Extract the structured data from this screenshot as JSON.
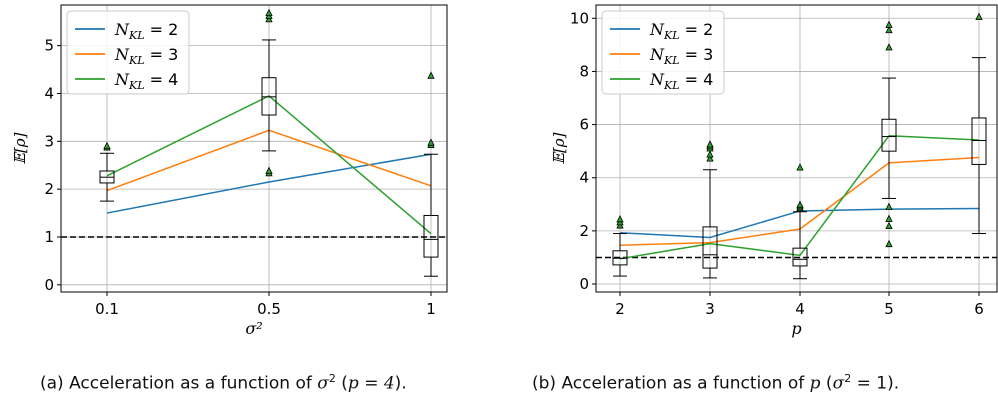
{
  "chart_data": [
    {
      "type": "line",
      "xlabel": "σ²",
      "ylabel": "𝔼[ρ]",
      "categories": [
        "0.1",
        "0.5",
        "1"
      ],
      "ylim": [
        -0.15,
        5.85
      ],
      "yticks": [
        0,
        1,
        2,
        3,
        4,
        5
      ],
      "grid": true,
      "legend_position": "top-left",
      "reference_line": {
        "y": 1,
        "style": "dashed",
        "color": "#000000"
      },
      "series": [
        {
          "name": "N_KL = 2",
          "label_main": "N",
          "label_sub": "KL",
          "label_rest": " = 2",
          "color": "#1f77b4",
          "values": [
            1.5,
            2.15,
            2.73
          ]
        },
        {
          "name": "N_KL = 3",
          "label_main": "N",
          "label_sub": "KL",
          "label_rest": " = 3",
          "color": "#ff7f0e",
          "values": [
            1.97,
            3.23,
            2.07
          ]
        },
        {
          "name": "N_KL = 4",
          "label_main": "N",
          "label_sub": "KL",
          "label_rest": " = 4",
          "color": "#2ca02c",
          "values": [
            2.28,
            3.95,
            1.07
          ]
        }
      ],
      "boxplots": [
        {
          "x": "0.1",
          "whislo": 1.75,
          "q1": 2.13,
          "med": 2.25,
          "q3": 2.38,
          "whishi": 2.75,
          "fliers": [
            2.87,
            2.9
          ]
        },
        {
          "x": "0.5",
          "whislo": 2.8,
          "q1": 3.55,
          "med": 3.93,
          "q3": 4.33,
          "whishi": 5.12,
          "fliers": [
            5.55,
            5.62,
            5.68,
            2.33,
            2.38
          ]
        },
        {
          "x": "1",
          "whislo": 0.18,
          "q1": 0.58,
          "med": 0.95,
          "q3": 1.45,
          "whishi": 2.73,
          "fliers": [
            2.92,
            2.97,
            4.37
          ]
        }
      ]
    },
    {
      "type": "line",
      "xlabel": "p",
      "ylabel": "𝔼[ρ]",
      "categories": [
        "2",
        "3",
        "4",
        "5",
        "6"
      ],
      "ylim": [
        -0.3,
        10.5
      ],
      "yticks": [
        0,
        2,
        4,
        6,
        8,
        10
      ],
      "grid": true,
      "legend_position": "top-left",
      "reference_line": {
        "y": 1,
        "style": "dashed",
        "color": "#000000"
      },
      "series": [
        {
          "name": "N_KL = 2",
          "label_main": "N",
          "label_sub": "KL",
          "label_rest": " = 2",
          "color": "#1f77b4",
          "values": [
            1.93,
            1.75,
            2.75,
            2.82,
            2.84
          ]
        },
        {
          "name": "N_KL = 3",
          "label_main": "N",
          "label_sub": "KL",
          "label_rest": " = 3",
          "color": "#ff7f0e",
          "values": [
            1.46,
            1.56,
            2.07,
            4.56,
            4.76
          ]
        },
        {
          "name": "N_KL = 4",
          "label_main": "N",
          "label_sub": "KL",
          "label_rest": " = 4",
          "color": "#2ca02c",
          "values": [
            0.95,
            1.52,
            1.08,
            5.58,
            5.42
          ]
        }
      ],
      "boxplots": [
        {
          "x": "2",
          "whislo": 0.3,
          "q1": 0.72,
          "med": 0.97,
          "q3": 1.25,
          "whishi": 1.9,
          "fliers": [
            2.2,
            2.32,
            2.43
          ]
        },
        {
          "x": "3",
          "whislo": 0.23,
          "q1": 0.6,
          "med": 1.1,
          "q3": 2.15,
          "whishi": 4.3,
          "fliers": [
            4.72,
            4.87,
            5.1,
            5.18,
            5.25
          ]
        },
        {
          "x": "4",
          "whislo": 0.2,
          "q1": 0.68,
          "med": 0.93,
          "q3": 1.35,
          "whishi": 2.72,
          "fliers": [
            2.85,
            2.92,
            2.98,
            4.38
          ]
        },
        {
          "x": "5",
          "whislo": 3.22,
          "q1": 5.0,
          "med": 5.55,
          "q3": 6.2,
          "whishi": 7.75,
          "fliers": [
            8.9,
            9.55,
            9.75,
            2.9,
            2.45,
            2.18,
            1.5
          ]
        },
        {
          "x": "6",
          "whislo": 1.9,
          "q1": 4.5,
          "med": 5.4,
          "q3": 6.25,
          "whishi": 8.52,
          "fliers": [
            10.05
          ]
        }
      ]
    }
  ],
  "captions": {
    "a": {
      "prefix": "(a) Acceleration as a function of ",
      "var": "σ",
      "sup": "2",
      "open": " (",
      "cond": "p = 4",
      "close": ")."
    },
    "b": {
      "prefix": "(b) Acceleration as a function of ",
      "var": "p",
      "open": " (",
      "cond_var": "σ",
      "cond_sup": "2",
      "cond_rest": " = 1",
      "close": ")."
    }
  }
}
